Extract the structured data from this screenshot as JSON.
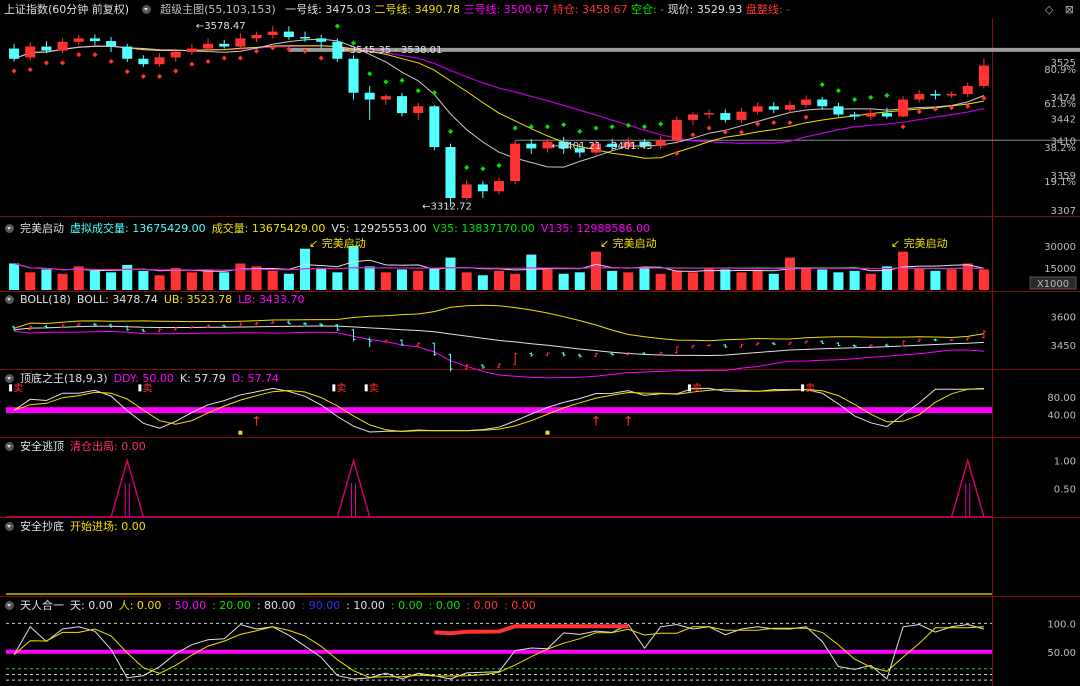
{
  "header": {
    "title": "上证指数(60分钟 前复权)",
    "indicator_name": "超级主图(55,103,153)",
    "line1_label": "一号线",
    "line1_value": "3475.03",
    "line2_label": "二号线",
    "line2_value": "3490.78",
    "line3_label": "三号线",
    "line3_value": "3500.67",
    "hold_label": "持仓",
    "hold_value": "3458.67",
    "empty_label": "空仓",
    "empty_value": "-",
    "price_label": "现价",
    "price_value": "3529.93",
    "stop_label": "盘整线",
    "stop_value": "-"
  },
  "window_buttons": {
    "restore": "◇",
    "close": "⊠"
  },
  "colors": {
    "up": "#ff3333",
    "down": "#54ffff",
    "yellow": "#f0e000",
    "magenta": "#ff00ff",
    "white": "#e0e0e0",
    "green": "#00e600",
    "purple": "#b000d0",
    "grey": "#808080"
  },
  "panels": [
    {
      "name": "完美启动",
      "items": [
        {
          "text": "虚拟成交量: 13675429.00",
          "color": "#54ffff"
        },
        {
          "text": "成交量: 13675429.00",
          "color": "#f0e000"
        },
        {
          "text": "V5: 12925553.00",
          "color": "#e0e0e0"
        },
        {
          "text": "V35: 13837170.00",
          "color": "#00e600"
        },
        {
          "text": "V135: 12988586.00",
          "color": "#ff00ff"
        }
      ]
    },
    {
      "name": "BOLL(18)",
      "items": [
        {
          "text": "BOLL: 3478.74",
          "color": "#e0e0e0"
        },
        {
          "text": "UB: 3523.78",
          "color": "#f0e000"
        },
        {
          "text": "LB: 3433.70",
          "color": "#ff00ff"
        }
      ]
    },
    {
      "name": "顶底之王(18,9,3)",
      "items": [
        {
          "text": "DDY: 50.00",
          "color": "#ff00ff"
        },
        {
          "text": "K: 57.79",
          "color": "#e0e0e0"
        },
        {
          "text": "D: 57.74",
          "color": "#ff00ff"
        }
      ]
    },
    {
      "name": "安全逃顶",
      "items": [
        {
          "text": "清仓出局: 0.00",
          "color": "#ff3366"
        }
      ]
    },
    {
      "name": "安全抄底",
      "items": [
        {
          "text": "开始进场: 0.00",
          "color": "#f0e000"
        }
      ]
    },
    {
      "name": "天人合一",
      "items": [
        {
          "text": "天: 0.00",
          "color": "#e0e0e0"
        },
        {
          "text": "人: 0.00",
          "color": "#f0e000"
        },
        {
          "text": ": 50.00",
          "color": "#ff00ff"
        },
        {
          "text": ": 20.00",
          "color": "#00e600"
        },
        {
          "text": ": 80.00",
          "color": "#e0e0e0"
        },
        {
          "text": ": 90.00",
          "color": "#3030ff"
        },
        {
          "text": ": 10.00",
          "color": "#e0e0e0"
        },
        {
          "text": ": 0.00",
          "color": "#00e600"
        },
        {
          "text": ": 0.00",
          "color": "#00e600"
        },
        {
          "text": ": 0.00",
          "color": "#ff3333"
        },
        {
          "text": ": 0.00",
          "color": "#ff3333"
        }
      ]
    }
  ],
  "chart_data": {
    "type": "candlestick",
    "main": {
      "yaxis_labels": [
        "3525",
        "3474",
        "3442",
        "3410",
        "3359",
        "3307"
      ],
      "yaxis_values": [
        3525,
        3474,
        3442,
        3410,
        3359,
        3307
      ],
      "percent_labels": [
        "80.9%",
        "61.8%",
        "38.2%",
        "19.1%"
      ],
      "percent_values": [
        3515,
        3465,
        3400,
        3350
      ],
      "ylim": [
        3300,
        3590
      ],
      "annotations": [
        {
          "text": "3578.47",
          "bar": 11,
          "price": 3578.47
        },
        {
          "text": "3545.35 - 3538.01",
          "bar": 20,
          "price": 3543
        },
        {
          "text": "3312.72",
          "bar": 25,
          "price": 3312.72
        },
        {
          "text": "3401.21 - 3401.43",
          "bar": 33,
          "price": 3401.3
        }
      ],
      "hlines": [
        3543,
        3410
      ],
      "candles": [
        [
          3545,
          3530,
          3552,
          3526
        ],
        [
          3532,
          3548,
          3554,
          3528
        ],
        [
          3548,
          3542,
          3556,
          3538
        ],
        [
          3542,
          3555,
          3560,
          3538
        ],
        [
          3555,
          3560,
          3565,
          3550
        ],
        [
          3560,
          3556,
          3566,
          3550
        ],
        [
          3556,
          3548,
          3562,
          3540
        ],
        [
          3548,
          3530,
          3552,
          3525
        ],
        [
          3530,
          3522,
          3535,
          3518
        ],
        [
          3522,
          3532,
          3538,
          3518
        ],
        [
          3532,
          3540,
          3545,
          3526
        ],
        [
          3540,
          3545,
          3552,
          3536
        ],
        [
          3545,
          3552,
          3560,
          3540
        ],
        [
          3552,
          3548,
          3558,
          3545
        ],
        [
          3548,
          3560,
          3568,
          3545
        ],
        [
          3560,
          3565,
          3570,
          3555
        ],
        [
          3565,
          3570,
          3578,
          3560
        ],
        [
          3570,
          3562,
          3578,
          3558
        ],
        [
          3562,
          3560,
          3570,
          3555
        ],
        [
          3560,
          3555,
          3565,
          3545
        ],
        [
          3555,
          3530,
          3560,
          3525
        ],
        [
          3530,
          3480,
          3535,
          3470
        ],
        [
          3480,
          3470,
          3490,
          3440
        ],
        [
          3470,
          3475,
          3478,
          3462
        ],
        [
          3475,
          3450,
          3480,
          3445
        ],
        [
          3450,
          3460,
          3465,
          3440
        ],
        [
          3460,
          3400,
          3462,
          3395
        ],
        [
          3400,
          3325,
          3405,
          3312
        ],
        [
          3325,
          3345,
          3352,
          3322
        ],
        [
          3345,
          3335,
          3350,
          3325
        ],
        [
          3335,
          3350,
          3355,
          3330
        ],
        [
          3350,
          3405,
          3410,
          3345
        ],
        [
          3405,
          3398,
          3412,
          3390
        ],
        [
          3398,
          3408,
          3412,
          3392
        ],
        [
          3408,
          3398,
          3415,
          3390
        ],
        [
          3398,
          3392,
          3405,
          3385
        ],
        [
          3392,
          3405,
          3410,
          3388
        ],
        [
          3405,
          3400,
          3412,
          3395
        ],
        [
          3400,
          3408,
          3414,
          3396
        ],
        [
          3408,
          3402,
          3412,
          3398
        ],
        [
          3402,
          3410,
          3416,
          3398
        ],
        [
          3410,
          3440,
          3445,
          3405
        ],
        [
          3440,
          3448,
          3452,
          3432
        ],
        [
          3448,
          3450,
          3455,
          3442
        ],
        [
          3450,
          3440,
          3456,
          3436
        ],
        [
          3440,
          3452,
          3458,
          3436
        ],
        [
          3452,
          3460,
          3466,
          3448
        ],
        [
          3460,
          3455,
          3466,
          3450
        ],
        [
          3455,
          3462,
          3468,
          3450
        ],
        [
          3462,
          3470,
          3476,
          3458
        ],
        [
          3470,
          3460,
          3474,
          3455
        ],
        [
          3460,
          3448,
          3465,
          3445
        ],
        [
          3448,
          3445,
          3452,
          3440
        ],
        [
          3445,
          3450,
          3455,
          3440
        ],
        [
          3450,
          3445,
          3458,
          3442
        ],
        [
          3445,
          3470,
          3475,
          3444
        ],
        [
          3470,
          3478,
          3484,
          3466
        ],
        [
          3478,
          3476,
          3484,
          3470
        ],
        [
          3476,
          3478,
          3482,
          3472
        ],
        [
          3478,
          3490,
          3495,
          3474
        ],
        [
          3490,
          3520,
          3530,
          3486
        ]
      ]
    },
    "volume": {
      "yaxis_labels": [
        "30000",
        "15000"
      ],
      "yaxis_values": [
        30000,
        15000
      ],
      "ylim": [
        0,
        38000
      ],
      "scale_label": "X1000",
      "signal_label": "完美启动",
      "signal_bars": [
        18,
        36,
        54
      ],
      "values": [
        18000,
        12000,
        14000,
        11000,
        16000,
        13000,
        12000,
        17000,
        13000,
        10000,
        15000,
        12000,
        14000,
        12000,
        18000,
        16000,
        13000,
        11000,
        28000,
        15000,
        12000,
        30000,
        16000,
        12000,
        14000,
        13000,
        15000,
        22000,
        12000,
        10000,
        13000,
        11000,
        24000,
        14000,
        11000,
        12000,
        26000,
        13000,
        12000,
        15000,
        11000,
        13000,
        12000,
        15000,
        14000,
        12000,
        13000,
        11000,
        22000,
        15000,
        14000,
        12000,
        13000,
        11000,
        16000,
        26000,
        15000,
        13000,
        14000,
        18000,
        14000
      ]
    },
    "boll": {
      "yaxis_labels": [
        "3600",
        "3450"
      ],
      "yaxis_values": [
        3600,
        3450
      ],
      "ylim": [
        3330,
        3660
      ]
    },
    "kd": {
      "yaxis_labels": [
        "80.00",
        "40.00"
      ],
      "yaxis_values": [
        80,
        40
      ],
      "ylim": [
        0,
        110
      ],
      "sell_label": "卖",
      "sell_bars": [
        0,
        8,
        20,
        22,
        42,
        49
      ],
      "up_arrows": [
        15,
        36,
        38
      ],
      "yellow_marks": [
        14,
        33
      ]
    },
    "escape": {
      "yaxis_labels": [
        "1.00",
        "0.50"
      ],
      "yaxis_values": [
        1,
        0.5
      ],
      "ylim": [
        0,
        1.15
      ],
      "peaks": [
        7,
        21,
        59
      ]
    },
    "bottom": {
      "line_value": 0
    },
    "tianren": {
      "yaxis_labels": [
        "100.0",
        "50.00"
      ],
      "yaxis_values": [
        100,
        50
      ],
      "ylim": [
        -5,
        120
      ]
    }
  }
}
